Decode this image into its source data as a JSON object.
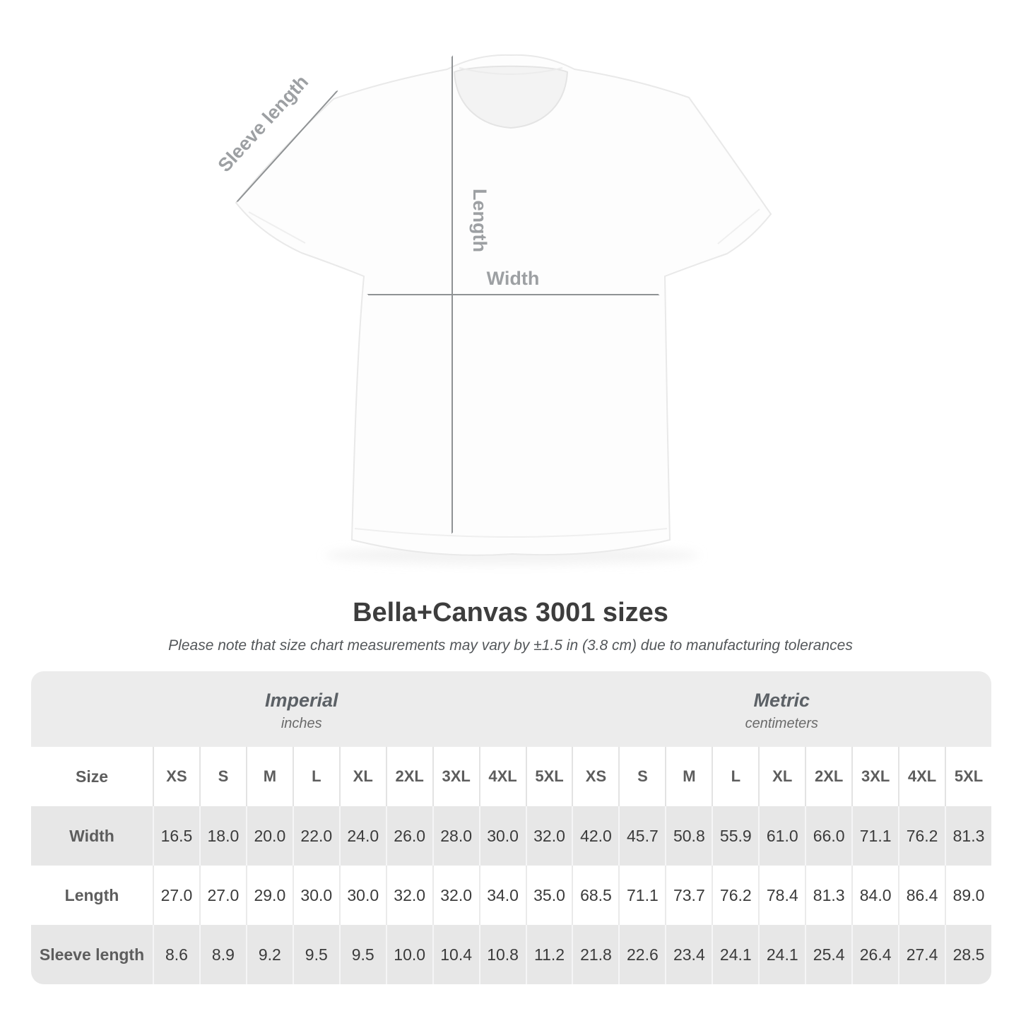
{
  "title": "Bella+Canvas 3001 sizes",
  "subtitle": "Please note that size chart measurements may vary by ±1.5 in (3.8 cm) due to manufacturing tolerances",
  "diagram": {
    "sleeve_label": "Sleeve length",
    "length_label": "Length",
    "width_label": "Width"
  },
  "table": {
    "size_header": "Size",
    "unit_groups": [
      {
        "label": "Imperial",
        "sublabel": "inches"
      },
      {
        "label": "Metric",
        "sublabel": "centimeters"
      }
    ],
    "sizes": [
      "XS",
      "S",
      "M",
      "L",
      "XL",
      "2XL",
      "3XL",
      "4XL",
      "5XL"
    ],
    "rows": [
      {
        "label": "Width",
        "imperial": [
          "16.5",
          "18.0",
          "20.0",
          "22.0",
          "24.0",
          "26.0",
          "28.0",
          "30.0",
          "32.0"
        ],
        "metric": [
          "42.0",
          "45.7",
          "50.8",
          "55.9",
          "61.0",
          "66.0",
          "71.1",
          "76.2",
          "81.3"
        ]
      },
      {
        "label": "Length",
        "imperial": [
          "27.0",
          "27.0",
          "29.0",
          "30.0",
          "30.0",
          "32.0",
          "32.0",
          "34.0",
          "35.0"
        ],
        "metric": [
          "68.5",
          "71.1",
          "73.7",
          "76.2",
          "78.4",
          "81.3",
          "84.0",
          "86.4",
          "89.0"
        ]
      },
      {
        "label": "Sleeve length",
        "imperial": [
          "8.6",
          "8.9",
          "9.2",
          "9.5",
          "9.5",
          "10.0",
          "10.4",
          "10.8",
          "11.2"
        ],
        "metric": [
          "21.8",
          "22.6",
          "23.4",
          "24.1",
          "24.1",
          "25.4",
          "26.4",
          "27.4",
          "28.5"
        ]
      }
    ]
  },
  "chart_data": {
    "type": "table",
    "title": "Bella+Canvas 3001 sizes",
    "column_groups": [
      "Imperial (inches)",
      "Metric (centimeters)"
    ],
    "columns": [
      "XS",
      "S",
      "M",
      "L",
      "XL",
      "2XL",
      "3XL",
      "4XL",
      "5XL"
    ],
    "rows": [
      {
        "label": "Width",
        "imperial": [
          16.5,
          18.0,
          20.0,
          22.0,
          24.0,
          26.0,
          28.0,
          30.0,
          32.0
        ],
        "metric": [
          42.0,
          45.7,
          50.8,
          55.9,
          61.0,
          66.0,
          71.1,
          76.2,
          81.3
        ]
      },
      {
        "label": "Length",
        "imperial": [
          27.0,
          27.0,
          29.0,
          30.0,
          30.0,
          32.0,
          32.0,
          34.0,
          35.0
        ],
        "metric": [
          68.5,
          71.1,
          73.7,
          76.2,
          78.4,
          81.3,
          84.0,
          86.4,
          89.0
        ]
      },
      {
        "label": "Sleeve length",
        "imperial": [
          8.6,
          8.9,
          9.2,
          9.5,
          9.5,
          10.0,
          10.4,
          10.8,
          11.2
        ],
        "metric": [
          21.8,
          22.6,
          23.4,
          24.1,
          24.1,
          25.4,
          26.4,
          27.4,
          28.5
        ]
      }
    ]
  },
  "colors": {
    "header_band": "#ececec",
    "row_gray": "#e7e7e7",
    "text_dark": "#3b3b3b",
    "text_gray": "#5d5d5d",
    "arrow": "#8f9294",
    "arrow_label": "#9da0a3"
  }
}
